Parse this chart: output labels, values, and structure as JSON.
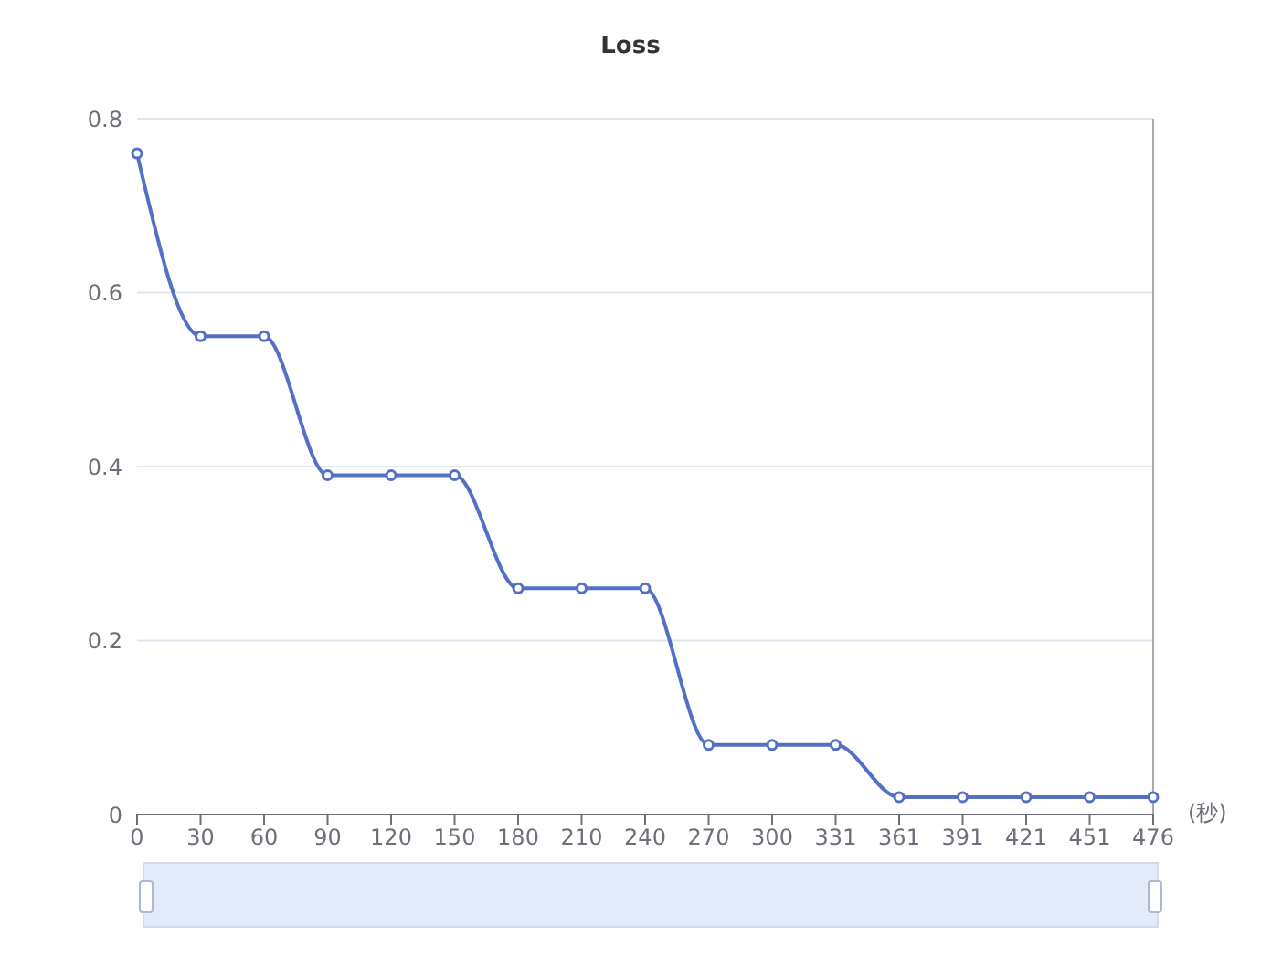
{
  "chart_data": {
    "type": "line",
    "title": "Loss",
    "xlabel": "(秒)",
    "categories": [
      "0",
      "30",
      "60",
      "90",
      "120",
      "150",
      "180",
      "210",
      "240",
      "270",
      "300",
      "331",
      "361",
      "391",
      "421",
      "451",
      "476"
    ],
    "series": [
      {
        "color": "#5470c6",
        "values": [
          0.76,
          0.55,
          0.55,
          0.39,
          0.39,
          0.39,
          0.26,
          0.26,
          0.26,
          0.08,
          0.08,
          0.08,
          0.02,
          0.02,
          0.02,
          0.02,
          0.02
        ]
      }
    ],
    "ylim": [
      0,
      0.8
    ],
    "yticks": [
      0,
      0.2,
      0.4,
      0.6,
      0.8
    ],
    "grid": "y",
    "marker": "circle",
    "line_style": "solid",
    "legend": false
  }
}
